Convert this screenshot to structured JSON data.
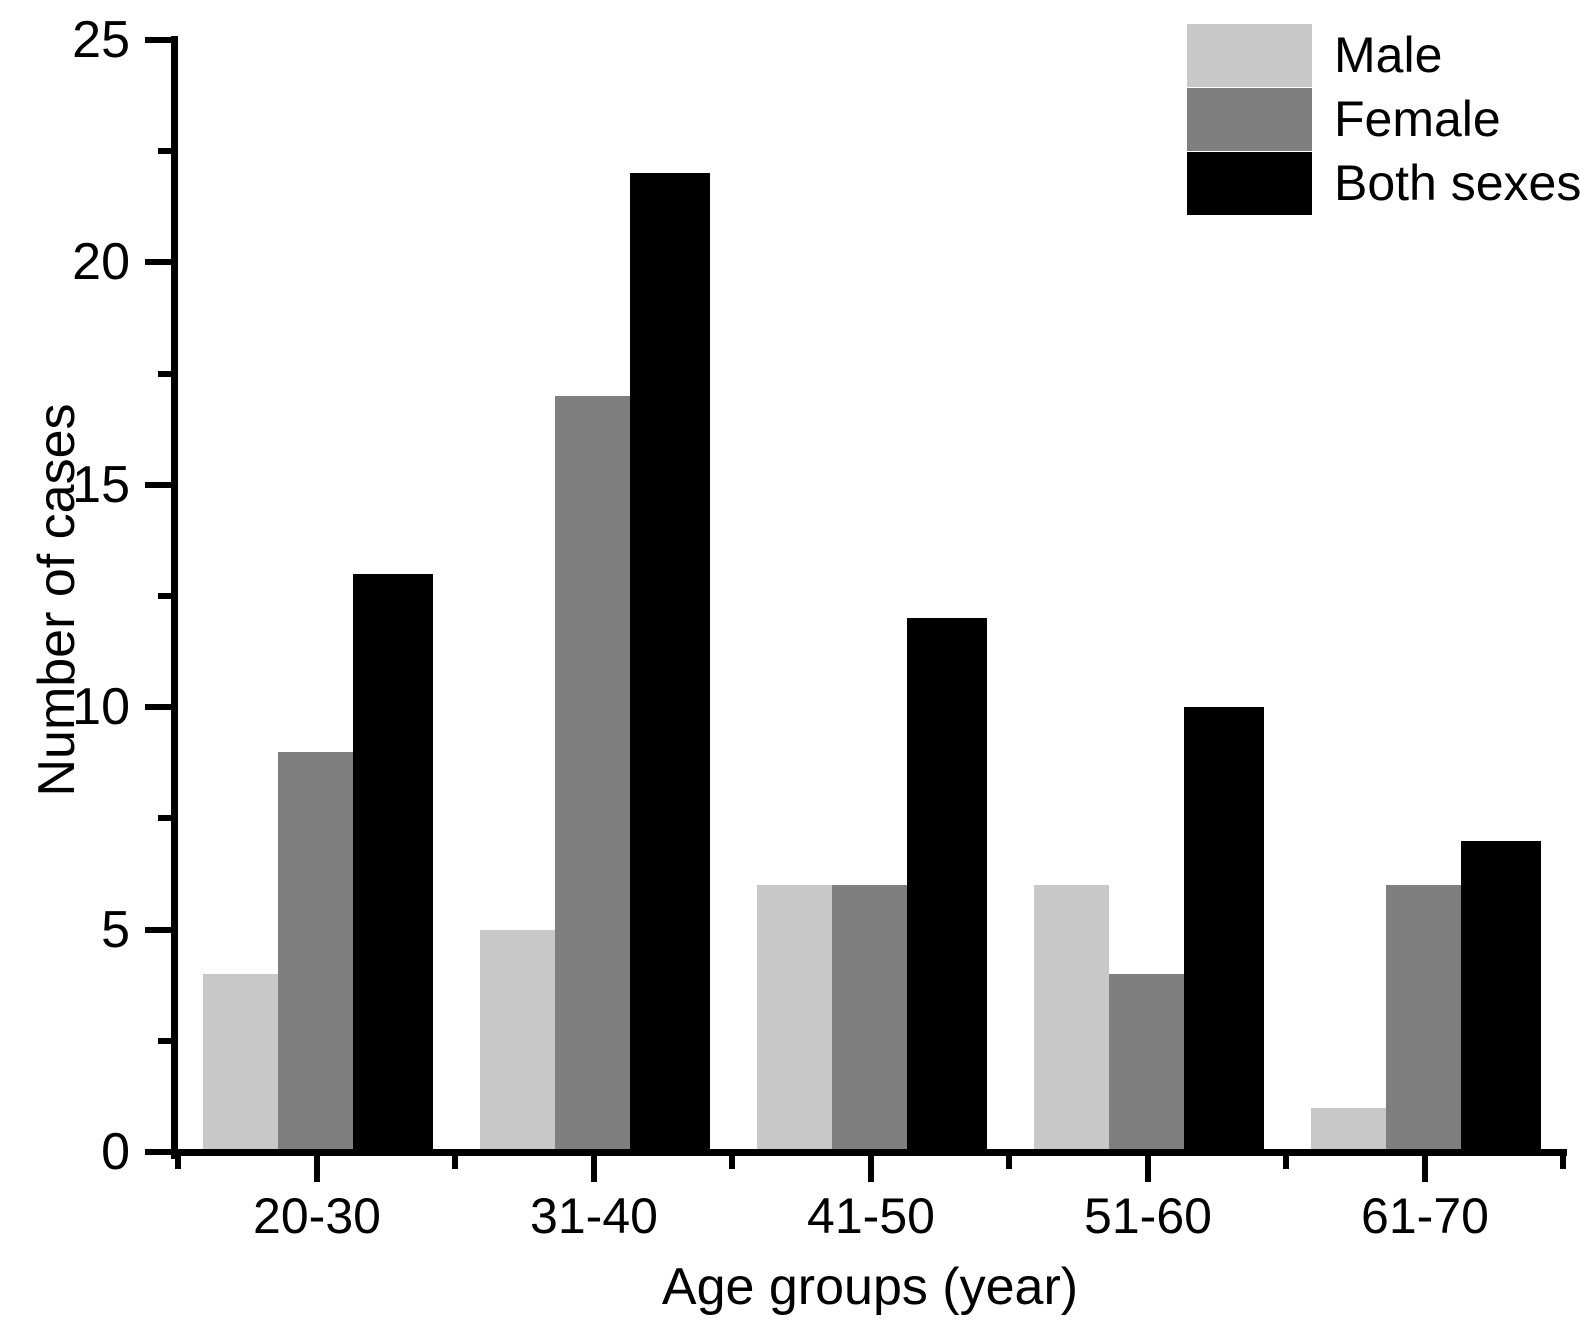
{
  "chart_data": {
    "type": "bar",
    "title": "",
    "categories": [
      "20-30",
      "31-40",
      "41-50",
      "51-60",
      "61-70"
    ],
    "series": [
      {
        "name": "Male",
        "color": "#c8c8c8",
        "values": [
          4,
          5,
          6,
          6,
          1
        ]
      },
      {
        "name": "Female",
        "color": "#7f7f7f",
        "values": [
          9,
          17,
          6,
          4,
          6
        ]
      },
      {
        "name": "Both sexes",
        "color": "#000000",
        "values": [
          13,
          22,
          12,
          10,
          7
        ]
      }
    ],
    "xlabel": "Age groups (year)",
    "ylabel": "Number of cases",
    "ylim": [
      0,
      25
    ],
    "y_major_ticks": [
      0,
      5,
      10,
      15,
      20,
      25
    ],
    "y_minor_ticks": [
      2.5,
      7.5,
      12.5,
      17.5,
      22.5
    ],
    "grid": false,
    "legend_position": "top-right",
    "axis_color": "#000000",
    "background_color": "#ffffff"
  }
}
